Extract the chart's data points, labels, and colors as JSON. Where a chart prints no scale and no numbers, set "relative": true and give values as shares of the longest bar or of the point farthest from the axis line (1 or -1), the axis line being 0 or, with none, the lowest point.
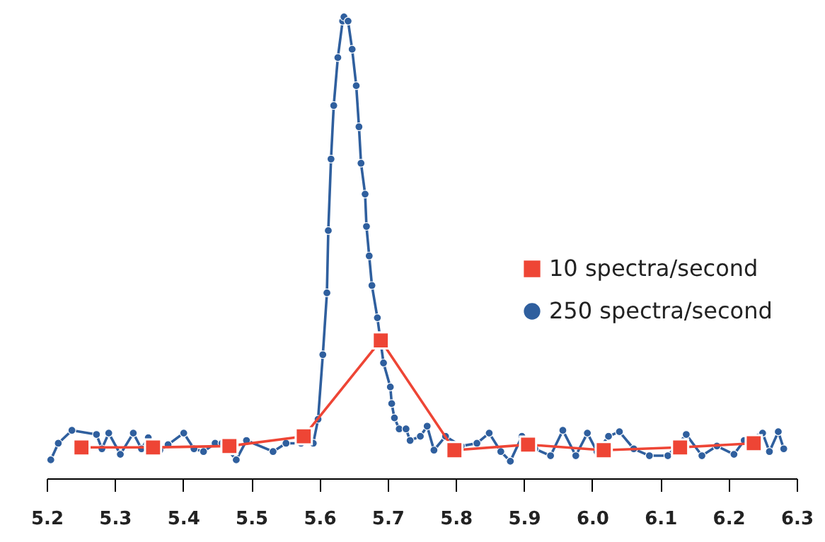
{
  "chart_data": {
    "type": "line",
    "relative": true,
    "xlim": [
      5.2,
      6.3
    ],
    "xticks": [
      {
        "value": 5.2,
        "label": "5.2"
      },
      {
        "value": 5.3,
        "label": "5.3"
      },
      {
        "value": 5.4,
        "label": "5.4"
      },
      {
        "value": 5.5,
        "label": "5.5"
      },
      {
        "value": 5.6,
        "label": "5.6"
      },
      {
        "value": 5.7,
        "label": "5.7"
      },
      {
        "value": 5.8,
        "label": "5.8"
      },
      {
        "value": 5.9,
        "label": "5.9"
      },
      {
        "value": 6.0,
        "label": "6.0"
      },
      {
        "value": 6.1,
        "label": "6.1"
      },
      {
        "value": 6.2,
        "label": "6.2"
      },
      {
        "value": 6.3,
        "label": "6.3"
      }
    ],
    "grid": false,
    "legend": "right",
    "line_style": "solid",
    "series": [
      {
        "name": "10 spectra/second",
        "color": "#ee4535",
        "marker": "square",
        "x": [
          5.251,
          5.356,
          5.468,
          5.577,
          5.69,
          5.798,
          5.906,
          6.017,
          6.129,
          6.237
        ],
        "values": [
          0.067,
          0.067,
          0.07,
          0.091,
          0.299,
          0.061,
          0.073,
          0.061,
          0.067,
          0.076
        ]
      },
      {
        "name": "250 spectra/second",
        "color": "#2f5f9e",
        "marker": "circle",
        "x": [
          5.206,
          5.217,
          5.237,
          5.273,
          5.281,
          5.291,
          5.308,
          5.327,
          5.339,
          5.349,
          5.366,
          5.378,
          5.401,
          5.416,
          5.43,
          5.447,
          5.457,
          5.478,
          5.493,
          5.532,
          5.551,
          5.573,
          5.591,
          5.598,
          5.605,
          5.611,
          5.613,
          5.617,
          5.621,
          5.627,
          5.634,
          5.636,
          5.642,
          5.648,
          5.654,
          5.658,
          5.661,
          5.667,
          5.669,
          5.673,
          5.677,
          5.685,
          5.694,
          5.704,
          5.706,
          5.71,
          5.717,
          5.727,
          5.733,
          5.748,
          5.758,
          5.768,
          5.785,
          5.808,
          5.831,
          5.849,
          5.866,
          5.88,
          5.897,
          5.916,
          5.939,
          5.957,
          5.976,
          5.993,
          6.007,
          6.024,
          6.04,
          6.061,
          6.084,
          6.111,
          6.138,
          6.161,
          6.183,
          6.208,
          6.223,
          6.25,
          6.26,
          6.273,
          6.281
        ],
        "values": [
          0.04,
          0.076,
          0.104,
          0.095,
          0.064,
          0.098,
          0.052,
          0.098,
          0.064,
          0.088,
          0.061,
          0.073,
          0.098,
          0.064,
          0.058,
          0.076,
          0.076,
          0.04,
          0.082,
          0.058,
          0.076,
          0.076,
          0.076,
          0.128,
          0.268,
          0.402,
          0.537,
          0.692,
          0.808,
          0.912,
          0.991,
          1.0,
          0.991,
          0.93,
          0.851,
          0.762,
          0.683,
          0.616,
          0.546,
          0.482,
          0.418,
          0.348,
          0.25,
          0.198,
          0.162,
          0.131,
          0.107,
          0.107,
          0.082,
          0.091,
          0.113,
          0.061,
          0.091,
          0.07,
          0.076,
          0.098,
          0.058,
          0.037,
          0.091,
          0.064,
          0.049,
          0.104,
          0.049,
          0.098,
          0.058,
          0.091,
          0.101,
          0.064,
          0.049,
          0.049,
          0.095,
          0.049,
          0.07,
          0.052,
          0.082,
          0.098,
          0.058,
          0.101,
          0.064
        ]
      }
    ]
  }
}
